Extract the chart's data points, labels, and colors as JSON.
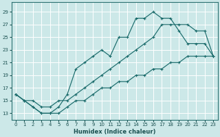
{
  "xlabel": "Humidex (Indice chaleur)",
  "bg_color": "#cce8e8",
  "grid_color": "#ffffff",
  "line_color": "#1a6b6b",
  "xlim": [
    -0.5,
    23.5
  ],
  "ylim": [
    12.0,
    30.5
  ],
  "xticks": [
    0,
    1,
    2,
    3,
    4,
    5,
    6,
    7,
    8,
    9,
    10,
    11,
    12,
    13,
    14,
    15,
    16,
    17,
    18,
    19,
    20,
    21,
    22,
    23
  ],
  "yticks": [
    13,
    15,
    17,
    19,
    21,
    23,
    25,
    27,
    29
  ],
  "curve_top_x": [
    0,
    1,
    2,
    3,
    4,
    5,
    6,
    7,
    8,
    9,
    10,
    11,
    12,
    13,
    14,
    15,
    16,
    17,
    18,
    19,
    20,
    21,
    22,
    23
  ],
  "curve_top_y": [
    16,
    15,
    14,
    13,
    13,
    14,
    16,
    20,
    21,
    22,
    23,
    22,
    25,
    25,
    28,
    28,
    29,
    28,
    28,
    26,
    24,
    24,
    24,
    22
  ],
  "curve_mid_x": [
    0,
    1,
    2,
    3,
    4,
    5,
    6,
    7,
    8,
    9,
    10,
    11,
    12,
    13,
    14,
    15,
    16,
    17,
    18,
    19,
    20,
    21,
    22,
    23
  ],
  "curve_mid_y": [
    16,
    15,
    15,
    14,
    14,
    15,
    15,
    16,
    17,
    18,
    19,
    20,
    21,
    22,
    23,
    24,
    25,
    27,
    27,
    27,
    27,
    26,
    26,
    22
  ],
  "curve_bot_x": [
    0,
    1,
    2,
    3,
    4,
    5,
    6,
    7,
    8,
    9,
    10,
    11,
    12,
    13,
    14,
    15,
    16,
    17,
    18,
    19,
    20,
    21,
    22,
    23
  ],
  "curve_bot_y": [
    16,
    15,
    14,
    13,
    13,
    13,
    14,
    15,
    15,
    16,
    17,
    17,
    18,
    18,
    19,
    19,
    20,
    20,
    21,
    21,
    22,
    22,
    22,
    22
  ]
}
